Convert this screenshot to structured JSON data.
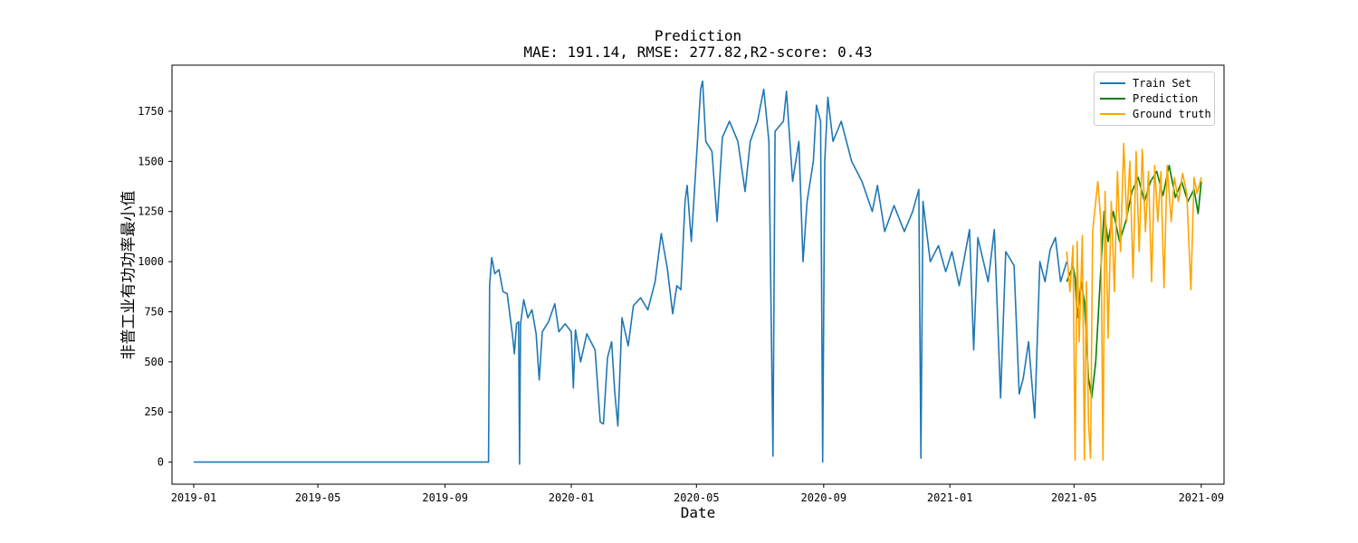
{
  "chart_data": {
    "type": "line",
    "title": "Prediction",
    "subtitle": "MAE: 191.14, RMSE: 277.82,R2-score: 0.43",
    "xlabel": "Date",
    "ylabel": "非普工业有功功率最小值",
    "x_range": [
      "2018-12-11",
      "2021-09-23"
    ],
    "ylim": [
      -110,
      1980
    ],
    "x_ticks": [
      "2019-01",
      "2019-05",
      "2019-09",
      "2020-01",
      "2020-05",
      "2020-09",
      "2021-01",
      "2021-05",
      "2021-09"
    ],
    "y_ticks": [
      0,
      250,
      500,
      750,
      1000,
      1250,
      1500,
      1750
    ],
    "grid": false,
    "legend_position": "top-right",
    "series": [
      {
        "name": "Train Set",
        "color": "#1f77b4",
        "points": [
          [
            "2019-01-01",
            0
          ],
          [
            "2019-10-13",
            0
          ],
          [
            "2019-10-14",
            880
          ],
          [
            "2019-10-16",
            1020
          ],
          [
            "2019-10-19",
            940
          ],
          [
            "2019-10-23",
            960
          ],
          [
            "2019-10-27",
            850
          ],
          [
            "2019-10-31",
            840
          ],
          [
            "2019-11-03",
            720
          ],
          [
            "2019-11-05",
            640
          ],
          [
            "2019-11-07",
            540
          ],
          [
            "2019-11-09",
            690
          ],
          [
            "2019-11-11",
            700
          ],
          [
            "2019-11-12",
            -10
          ],
          [
            "2019-11-13",
            690
          ],
          [
            "2019-11-16",
            810
          ],
          [
            "2019-11-20",
            720
          ],
          [
            "2019-11-24",
            760
          ],
          [
            "2019-11-28",
            640
          ],
          [
            "2019-12-01",
            410
          ],
          [
            "2019-12-04",
            650
          ],
          [
            "2019-12-10",
            700
          ],
          [
            "2019-12-16",
            790
          ],
          [
            "2019-12-20",
            650
          ],
          [
            "2019-12-26",
            690
          ],
          [
            "2020-01-01",
            650
          ],
          [
            "2020-01-03",
            370
          ],
          [
            "2020-01-05",
            660
          ],
          [
            "2020-01-10",
            500
          ],
          [
            "2020-01-16",
            640
          ],
          [
            "2020-01-24",
            560
          ],
          [
            "2020-01-29",
            200
          ],
          [
            "2020-02-01",
            190
          ],
          [
            "2020-02-05",
            520
          ],
          [
            "2020-02-09",
            600
          ],
          [
            "2020-02-12",
            350
          ],
          [
            "2020-02-15",
            180
          ],
          [
            "2020-02-19",
            720
          ],
          [
            "2020-02-25",
            580
          ],
          [
            "2020-03-01",
            780
          ],
          [
            "2020-03-08",
            820
          ],
          [
            "2020-03-15",
            760
          ],
          [
            "2020-03-22",
            900
          ],
          [
            "2020-03-28",
            1140
          ],
          [
            "2020-04-03",
            960
          ],
          [
            "2020-04-08",
            740
          ],
          [
            "2020-04-12",
            880
          ],
          [
            "2020-04-16",
            860
          ],
          [
            "2020-04-20",
            1300
          ],
          [
            "2020-04-22",
            1380
          ],
          [
            "2020-04-26",
            1100
          ],
          [
            "2020-05-02",
            1600
          ],
          [
            "2020-05-05",
            1860
          ],
          [
            "2020-05-07",
            1900
          ],
          [
            "2020-05-10",
            1600
          ],
          [
            "2020-05-16",
            1550
          ],
          [
            "2020-05-21",
            1200
          ],
          [
            "2020-05-26",
            1620
          ],
          [
            "2020-06-02",
            1700
          ],
          [
            "2020-06-10",
            1600
          ],
          [
            "2020-06-17",
            1350
          ],
          [
            "2020-06-22",
            1600
          ],
          [
            "2020-06-29",
            1700
          ],
          [
            "2020-07-05",
            1860
          ],
          [
            "2020-07-10",
            1600
          ],
          [
            "2020-07-14",
            30
          ],
          [
            "2020-07-16",
            1650
          ],
          [
            "2020-07-24",
            1700
          ],
          [
            "2020-07-27",
            1850
          ],
          [
            "2020-08-02",
            1400
          ],
          [
            "2020-08-08",
            1600
          ],
          [
            "2020-08-12",
            1000
          ],
          [
            "2020-08-16",
            1300
          ],
          [
            "2020-08-22",
            1500
          ],
          [
            "2020-08-25",
            1780
          ],
          [
            "2020-08-29",
            1700
          ],
          [
            "2020-08-31",
            0
          ],
          [
            "2020-09-02",
            1500
          ],
          [
            "2020-09-05",
            1820
          ],
          [
            "2020-09-10",
            1600
          ],
          [
            "2020-09-18",
            1700
          ],
          [
            "2020-09-28",
            1500
          ],
          [
            "2020-10-08",
            1400
          ],
          [
            "2020-10-18",
            1250
          ],
          [
            "2020-10-23",
            1380
          ],
          [
            "2020-10-30",
            1150
          ],
          [
            "2020-11-08",
            1280
          ],
          [
            "2020-11-18",
            1150
          ],
          [
            "2020-11-26",
            1250
          ],
          [
            "2020-12-02",
            1360
          ],
          [
            "2020-12-04",
            20
          ],
          [
            "2020-12-06",
            1300
          ],
          [
            "2020-12-13",
            1000
          ],
          [
            "2020-12-21",
            1080
          ],
          [
            "2020-12-28",
            950
          ],
          [
            "2021-01-03",
            1050
          ],
          [
            "2021-01-10",
            880
          ],
          [
            "2021-01-20",
            1160
          ],
          [
            "2021-01-24",
            560
          ],
          [
            "2021-01-28",
            1120
          ],
          [
            "2021-02-07",
            900
          ],
          [
            "2021-02-13",
            1160
          ],
          [
            "2021-02-19",
            320
          ],
          [
            "2021-02-24",
            1050
          ],
          [
            "2021-03-04",
            980
          ],
          [
            "2021-03-09",
            340
          ],
          [
            "2021-03-13",
            420
          ],
          [
            "2021-03-18",
            600
          ],
          [
            "2021-03-24",
            220
          ],
          [
            "2021-03-29",
            1000
          ],
          [
            "2021-04-03",
            900
          ],
          [
            "2021-04-08",
            1060
          ],
          [
            "2021-04-13",
            1120
          ],
          [
            "2021-04-18",
            900
          ],
          [
            "2021-04-24",
            1000
          ]
        ]
      },
      {
        "name": "Prediction",
        "color": "#008000",
        "points": [
          [
            "2021-04-24",
            900
          ],
          [
            "2021-04-30",
            980
          ],
          [
            "2021-05-02",
            920
          ],
          [
            "2021-05-04",
            720
          ],
          [
            "2021-05-08",
            900
          ],
          [
            "2021-05-11",
            800
          ],
          [
            "2021-05-15",
            420
          ],
          [
            "2021-05-18",
            320
          ],
          [
            "2021-05-22",
            500
          ],
          [
            "2021-05-26",
            880
          ],
          [
            "2021-05-30",
            1250
          ],
          [
            "2021-06-03",
            1100
          ],
          [
            "2021-06-08",
            1250
          ],
          [
            "2021-06-14",
            1100
          ],
          [
            "2021-06-20",
            1200
          ],
          [
            "2021-06-26",
            1350
          ],
          [
            "2021-07-02",
            1420
          ],
          [
            "2021-07-08",
            1300
          ],
          [
            "2021-07-14",
            1400
          ],
          [
            "2021-07-20",
            1450
          ],
          [
            "2021-07-26",
            1330
          ],
          [
            "2021-08-01",
            1480
          ],
          [
            "2021-08-07",
            1320
          ],
          [
            "2021-08-13",
            1400
          ],
          [
            "2021-08-19",
            1300
          ],
          [
            "2021-08-25",
            1360
          ],
          [
            "2021-08-29",
            1240
          ],
          [
            "2021-09-01",
            1400
          ]
        ]
      },
      {
        "name": "Ground truth",
        "color": "#ffa500",
        "points": [
          [
            "2021-04-24",
            1050
          ],
          [
            "2021-04-27",
            850
          ],
          [
            "2021-04-30",
            1080
          ],
          [
            "2021-05-02",
            10
          ],
          [
            "2021-05-04",
            1100
          ],
          [
            "2021-05-06",
            600
          ],
          [
            "2021-05-09",
            1130
          ],
          [
            "2021-05-11",
            10
          ],
          [
            "2021-05-13",
            900
          ],
          [
            "2021-05-15",
            200
          ],
          [
            "2021-05-17",
            20
          ],
          [
            "2021-05-19",
            1150
          ],
          [
            "2021-05-22",
            1300
          ],
          [
            "2021-05-24",
            1400
          ],
          [
            "2021-05-27",
            1200
          ],
          [
            "2021-05-29",
            10
          ],
          [
            "2021-05-31",
            1350
          ],
          [
            "2021-06-03",
            620
          ],
          [
            "2021-06-06",
            1300
          ],
          [
            "2021-06-09",
            850
          ],
          [
            "2021-06-12",
            1450
          ],
          [
            "2021-06-15",
            1050
          ],
          [
            "2021-06-18",
            1590
          ],
          [
            "2021-06-21",
            1200
          ],
          [
            "2021-06-24",
            1500
          ],
          [
            "2021-06-27",
            920
          ],
          [
            "2021-06-30",
            1550
          ],
          [
            "2021-07-03",
            1050
          ],
          [
            "2021-07-06",
            1560
          ],
          [
            "2021-07-09",
            1150
          ],
          [
            "2021-07-12",
            1450
          ],
          [
            "2021-07-15",
            900
          ],
          [
            "2021-07-18",
            1480
          ],
          [
            "2021-07-21",
            1200
          ],
          [
            "2021-07-24",
            1450
          ],
          [
            "2021-07-27",
            870
          ],
          [
            "2021-07-30",
            1480
          ],
          [
            "2021-08-03",
            1200
          ],
          [
            "2021-08-06",
            1420
          ],
          [
            "2021-08-10",
            1300
          ],
          [
            "2021-08-14",
            1440
          ],
          [
            "2021-08-18",
            1340
          ],
          [
            "2021-08-22",
            860
          ],
          [
            "2021-08-25",
            1420
          ],
          [
            "2021-08-28",
            1340
          ],
          [
            "2021-09-01",
            1420
          ]
        ]
      }
    ]
  }
}
